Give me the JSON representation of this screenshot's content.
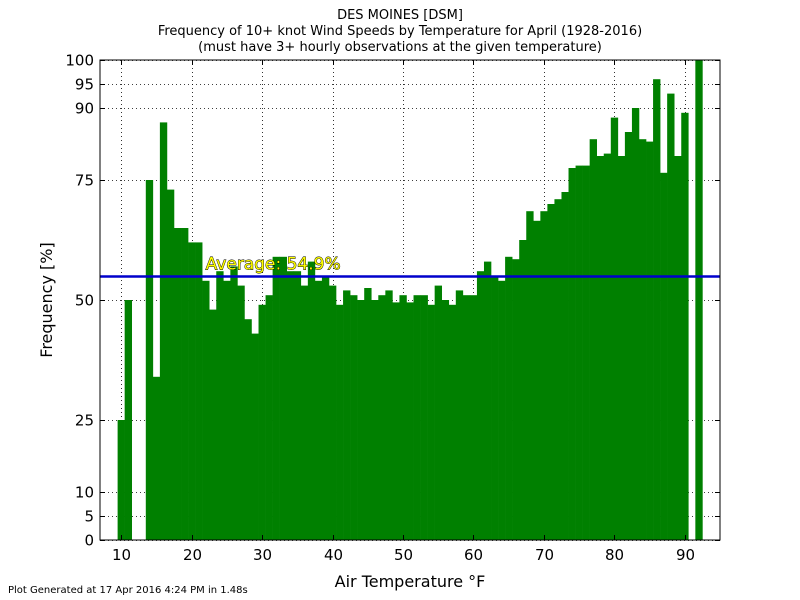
{
  "chart_data": {
    "type": "bar",
    "title": "DES MOINES [DSM]",
    "title_line2": "Frequency of 10+ knot Wind Speeds by Temperature for April (1928-2016)",
    "subtitle": "(must have 3+ hourly observations at the given temperature)",
    "xlabel": "Air Temperature °F",
    "ylabel": "Frequency [%]",
    "xlim": [
      7,
      95
    ],
    "ylim": [
      0,
      100
    ],
    "xticks": [
      10,
      20,
      30,
      40,
      50,
      60,
      70,
      80,
      90
    ],
    "yticks": [
      0,
      5,
      10,
      25,
      50,
      75,
      90,
      95,
      100
    ],
    "grid": true,
    "bar_color": "#008000",
    "average_color": "#0000cc",
    "average_value": 54.9,
    "average_label": "Average: 54.9%",
    "average_label_x": 22,
    "x": [
      10,
      11,
      12,
      14,
      15,
      16,
      17,
      18,
      19,
      20,
      21,
      22,
      23,
      24,
      25,
      26,
      27,
      28,
      29,
      30,
      31,
      32,
      33,
      34,
      35,
      36,
      37,
      38,
      39,
      40,
      41,
      42,
      43,
      44,
      45,
      46,
      47,
      48,
      49,
      50,
      51,
      52,
      53,
      54,
      55,
      56,
      57,
      58,
      59,
      60,
      61,
      62,
      63,
      64,
      65,
      66,
      67,
      68,
      69,
      70,
      71,
      72,
      73,
      74,
      75,
      76,
      77,
      78,
      79,
      80,
      81,
      82,
      83,
      84,
      85,
      86,
      87,
      88,
      89,
      90,
      92
    ],
    "values": [
      25,
      50,
      0,
      75,
      34,
      87,
      73,
      65,
      65,
      62,
      62,
      54,
      48,
      56,
      54,
      57,
      53,
      46,
      43,
      49,
      51,
      59,
      59,
      56,
      56,
      53,
      58,
      54,
      55,
      53,
      49,
      52,
      51,
      50,
      52.5,
      50,
      51,
      52,
      49.5,
      51,
      49.5,
      51,
      51,
      49,
      53,
      50,
      49,
      52,
      51,
      51,
      56,
      58,
      55,
      54,
      59,
      58.5,
      62.5,
      68.5,
      66.5,
      68.5,
      70,
      71,
      72.5,
      77.5,
      78,
      78,
      83.5,
      80,
      80.5,
      88,
      80,
      85,
      90,
      83.5,
      83,
      96,
      76.5,
      93,
      80,
      89,
      100
    ]
  },
  "footer": {
    "text": "Plot Generated at 17 Apr 2016 4:24 PM in 1.48s"
  }
}
